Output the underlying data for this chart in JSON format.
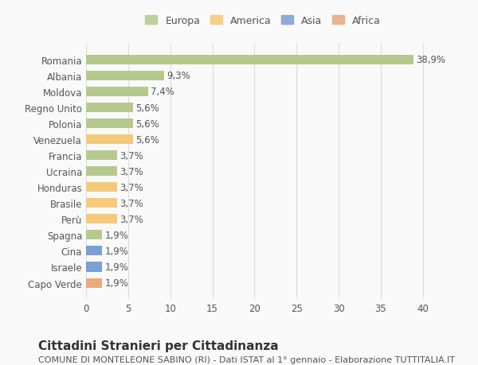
{
  "countries": [
    "Romania",
    "Albania",
    "Moldova",
    "Regno Unito",
    "Polonia",
    "Venezuela",
    "Francia",
    "Ucraina",
    "Honduras",
    "Brasile",
    "Perù",
    "Spagna",
    "Cina",
    "Israele",
    "Capo Verde"
  ],
  "values": [
    38.9,
    9.3,
    7.4,
    5.6,
    5.6,
    5.6,
    3.7,
    3.7,
    3.7,
    3.7,
    3.7,
    1.9,
    1.9,
    1.9,
    1.9
  ],
  "labels": [
    "38,9%",
    "9,3%",
    "7,4%",
    "5,6%",
    "5,6%",
    "5,6%",
    "3,7%",
    "3,7%",
    "3,7%",
    "3,7%",
    "3,7%",
    "1,9%",
    "1,9%",
    "1,9%",
    "1,9%"
  ],
  "continents": [
    "Europa",
    "Europa",
    "Europa",
    "Europa",
    "Europa",
    "America",
    "Europa",
    "Europa",
    "America",
    "America",
    "America",
    "Europa",
    "Asia",
    "Asia",
    "Africa"
  ],
  "continent_colors": {
    "Europa": "#b5c98e",
    "America": "#f5c97a",
    "Asia": "#7b9fd4",
    "Africa": "#e8aa7e"
  },
  "legend_order": [
    "Europa",
    "America",
    "Asia",
    "Africa"
  ],
  "legend_colors": {
    "Europa": "#b5c98e",
    "America": "#f5c97a",
    "Asia": "#7b9fd4",
    "Africa": "#e8aa7e"
  },
  "xlim": [
    0,
    42
  ],
  "xticks": [
    0,
    5,
    10,
    15,
    20,
    25,
    30,
    35,
    40
  ],
  "title": "Cittadini Stranieri per Cittadinanza",
  "subtitle": "COMUNE DI MONTELEONE SABINO (RI) - Dati ISTAT al 1° gennaio - Elaborazione TUTTITALIA.IT",
  "bg_color": "#f9f9f9",
  "grid_color": "#dddddd",
  "bar_height": 0.6,
  "label_fontsize": 8.5,
  "tick_fontsize": 8.5,
  "title_fontsize": 11,
  "subtitle_fontsize": 8
}
